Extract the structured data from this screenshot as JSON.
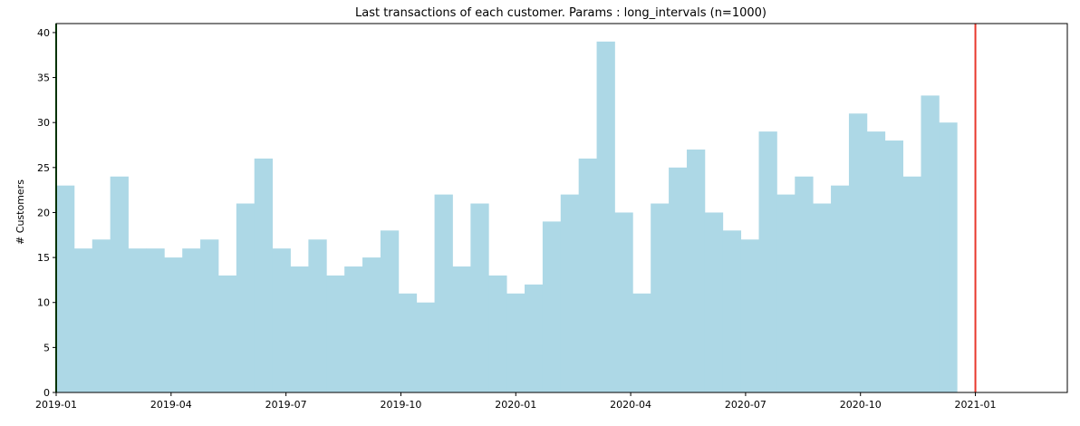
{
  "chart_data": {
    "type": "bar",
    "title": "Last transactions of each customer. Params : long_intervals (n=1000)",
    "xlabel": "",
    "ylabel": "# Customers",
    "ylim": [
      0,
      41
    ],
    "yticks": [
      0,
      5,
      10,
      15,
      20,
      25,
      30,
      35,
      40
    ],
    "xlim_months": [
      0,
      26.4
    ],
    "xticks": [
      {
        "label": "2019-01",
        "month": 0
      },
      {
        "label": "2019-04",
        "month": 3
      },
      {
        "label": "2019-07",
        "month": 6
      },
      {
        "label": "2019-10",
        "month": 9
      },
      {
        "label": "2020-01",
        "month": 12
      },
      {
        "label": "2020-04",
        "month": 15
      },
      {
        "label": "2020-07",
        "month": 18
      },
      {
        "label": "2020-10",
        "month": 21
      },
      {
        "label": "2021-01",
        "month": 24
      }
    ],
    "bins_start_month": 0,
    "bins_end_month": 23.52,
    "values": [
      23,
      16,
      17,
      24,
      16,
      16,
      15,
      16,
      17,
      13,
      21,
      26,
      16,
      14,
      17,
      13,
      14,
      15,
      18,
      11,
      10,
      22,
      14,
      21,
      13,
      11,
      12,
      19,
      22,
      26,
      39,
      20,
      11,
      21,
      25,
      27,
      20,
      18,
      17,
      29,
      22,
      24,
      21,
      23,
      31,
      29,
      28,
      24,
      33,
      30
    ],
    "bar_color": "#add8e6",
    "vlines": [
      {
        "month": 0,
        "color": "#006400"
      },
      {
        "month": 24,
        "color": "#e8382c"
      }
    ],
    "grid": false
  }
}
